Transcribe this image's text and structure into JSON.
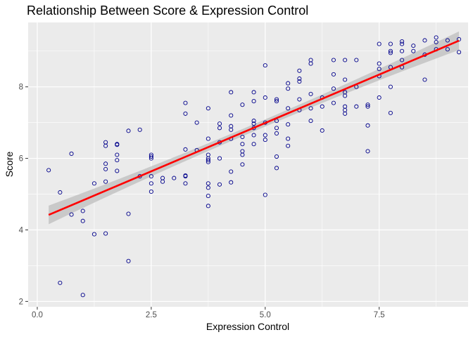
{
  "chart_data": {
    "type": "scatter",
    "title": "Relationship Between Score & Expression Control",
    "xlabel": "Expression Control",
    "ylabel": "Score",
    "xlim": [
      -0.2,
      9.45
    ],
    "ylim": [
      1.85,
      9.8
    ],
    "x_ticks": [
      0,
      2.5,
      5,
      7.5
    ],
    "x_tick_labels": [
      "0.0",
      "2.5",
      "5.0",
      "7.5"
    ],
    "y_ticks": [
      2,
      4,
      6,
      8
    ],
    "y_tick_labels": [
      "2",
      "4",
      "6",
      "8"
    ],
    "grid": true,
    "legend": "none",
    "point_color": "#00008B",
    "line_color": "#FF0000",
    "band_color": "#BEBEBE",
    "panel_color": "#EBEBEB",
    "trend": {
      "method": "linear",
      "x_start": 0.25,
      "y_start": 4.42,
      "x_end": 9.25,
      "y_end": 9.29,
      "band_half_width_ends": 0.26,
      "band_half_width_center": 0.1
    },
    "points": [
      [
        0.25,
        5.67
      ],
      [
        0.5,
        5.05
      ],
      [
        0.5,
        2.52
      ],
      [
        0.75,
        6.13
      ],
      [
        0.75,
        4.43
      ],
      [
        1.0,
        4.53
      ],
      [
        1.0,
        4.25
      ],
      [
        1.0,
        2.18
      ],
      [
        1.25,
        5.3
      ],
      [
        1.25,
        3.88
      ],
      [
        1.5,
        6.45
      ],
      [
        1.5,
        6.35
      ],
      [
        1.5,
        5.85
      ],
      [
        1.5,
        5.7
      ],
      [
        1.5,
        5.35
      ],
      [
        1.5,
        3.9
      ],
      [
        1.75,
        6.4
      ],
      [
        1.75,
        6.38
      ],
      [
        1.75,
        6.1
      ],
      [
        1.75,
        5.95
      ],
      [
        1.75,
        5.65
      ],
      [
        2.0,
        6.77
      ],
      [
        2.0,
        4.45
      ],
      [
        2.0,
        3.13
      ],
      [
        2.25,
        6.8
      ],
      [
        2.25,
        5.5
      ],
      [
        2.5,
        6.1
      ],
      [
        2.5,
        6.05
      ],
      [
        2.5,
        6.0
      ],
      [
        2.5,
        5.5
      ],
      [
        2.5,
        5.3
      ],
      [
        2.5,
        5.07
      ],
      [
        2.75,
        5.45
      ],
      [
        2.75,
        5.35
      ],
      [
        3.0,
        5.45
      ],
      [
        3.25,
        7.55
      ],
      [
        3.25,
        7.25
      ],
      [
        3.25,
        6.25
      ],
      [
        3.25,
        5.5
      ],
      [
        3.25,
        5.52
      ],
      [
        3.25,
        5.3
      ],
      [
        3.5,
        7.0
      ],
      [
        3.5,
        6.23
      ],
      [
        3.75,
        7.4
      ],
      [
        3.75,
        6.55
      ],
      [
        3.75,
        6.1
      ],
      [
        3.75,
        6.0
      ],
      [
        3.75,
        5.95
      ],
      [
        3.75,
        5.9
      ],
      [
        3.75,
        5.3
      ],
      [
        3.75,
        5.18
      ],
      [
        3.75,
        4.95
      ],
      [
        3.75,
        4.67
      ],
      [
        4.0,
        6.97
      ],
      [
        4.0,
        6.85
      ],
      [
        4.0,
        6.45
      ],
      [
        4.0,
        6.0
      ],
      [
        4.0,
        5.27
      ],
      [
        4.25,
        7.85
      ],
      [
        4.25,
        7.2
      ],
      [
        4.25,
        6.9
      ],
      [
        4.25,
        6.8
      ],
      [
        4.25,
        6.55
      ],
      [
        4.25,
        5.63
      ],
      [
        4.25,
        5.33
      ],
      [
        4.5,
        7.5
      ],
      [
        4.5,
        6.6
      ],
      [
        4.5,
        6.4
      ],
      [
        4.5,
        6.2
      ],
      [
        4.5,
        6.1
      ],
      [
        4.5,
        5.83
      ],
      [
        4.75,
        7.85
      ],
      [
        4.75,
        7.6
      ],
      [
        4.75,
        7.05
      ],
      [
        4.75,
        6.97
      ],
      [
        4.75,
        6.85
      ],
      [
        4.75,
        6.65
      ],
      [
        4.75,
        6.4
      ],
      [
        5.0,
        8.6
      ],
      [
        5.0,
        7.7
      ],
      [
        5.0,
        7.0
      ],
      [
        5.0,
        6.65
      ],
      [
        5.0,
        6.52
      ],
      [
        5.0,
        4.98
      ],
      [
        5.25,
        7.65
      ],
      [
        5.25,
        7.6
      ],
      [
        5.25,
        7.05
      ],
      [
        5.25,
        6.85
      ],
      [
        5.25,
        6.7
      ],
      [
        5.25,
        6.05
      ],
      [
        5.25,
        5.73
      ],
      [
        5.5,
        8.1
      ],
      [
        5.5,
        7.95
      ],
      [
        5.5,
        7.4
      ],
      [
        5.5,
        6.95
      ],
      [
        5.5,
        6.55
      ],
      [
        5.5,
        6.35
      ],
      [
        5.75,
        8.45
      ],
      [
        5.75,
        8.23
      ],
      [
        5.75,
        8.15
      ],
      [
        5.75,
        7.65
      ],
      [
        5.75,
        7.35
      ],
      [
        6.0,
        8.75
      ],
      [
        6.0,
        8.65
      ],
      [
        6.0,
        7.8
      ],
      [
        6.0,
        7.4
      ],
      [
        6.0,
        7.05
      ],
      [
        6.25,
        7.7
      ],
      [
        6.25,
        7.45
      ],
      [
        6.25,
        6.78
      ],
      [
        6.5,
        8.75
      ],
      [
        6.5,
        8.35
      ],
      [
        6.5,
        7.95
      ],
      [
        6.5,
        7.55
      ],
      [
        6.75,
        8.75
      ],
      [
        6.75,
        8.2
      ],
      [
        6.75,
        7.85
      ],
      [
        6.75,
        7.75
      ],
      [
        6.75,
        7.45
      ],
      [
        6.75,
        7.35
      ],
      [
        6.75,
        7.25
      ],
      [
        7.0,
        8.75
      ],
      [
        7.0,
        8.0
      ],
      [
        7.0,
        7.45
      ],
      [
        7.25,
        7.5
      ],
      [
        7.25,
        7.45
      ],
      [
        7.25,
        6.92
      ],
      [
        7.25,
        6.2
      ],
      [
        7.5,
        9.2
      ],
      [
        7.5,
        8.65
      ],
      [
        7.5,
        8.5
      ],
      [
        7.5,
        8.3
      ],
      [
        7.5,
        7.7
      ],
      [
        7.75,
        9.2
      ],
      [
        7.75,
        9.0
      ],
      [
        7.75,
        8.95
      ],
      [
        7.75,
        8.55
      ],
      [
        7.75,
        8.0
      ],
      [
        7.75,
        7.27
      ],
      [
        8.0,
        9.27
      ],
      [
        8.0,
        9.2
      ],
      [
        8.0,
        9.0
      ],
      [
        8.0,
        8.75
      ],
      [
        8.0,
        8.55
      ],
      [
        8.25,
        9.15
      ],
      [
        8.25,
        9.0
      ],
      [
        8.5,
        9.3
      ],
      [
        8.5,
        8.9
      ],
      [
        8.5,
        8.2
      ],
      [
        8.75,
        9.38
      ],
      [
        8.75,
        9.25
      ],
      [
        8.75,
        9.05
      ],
      [
        9.0,
        9.3
      ],
      [
        9.0,
        9.05
      ],
      [
        9.25,
        9.33
      ],
      [
        9.25,
        8.97
      ]
    ]
  }
}
